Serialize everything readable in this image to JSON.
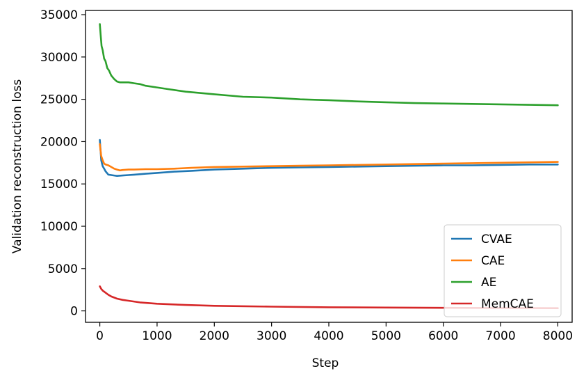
{
  "chart_data": {
    "type": "line",
    "xlabel": "Step",
    "ylabel": "Validation reconstruction loss",
    "xlim": [
      -250,
      8250
    ],
    "ylim": [
      -1350,
      35500
    ],
    "xticks": [
      0,
      1000,
      2000,
      3000,
      4000,
      5000,
      6000,
      7000,
      8000
    ],
    "yticks": [
      0,
      5000,
      10000,
      15000,
      20000,
      25000,
      30000,
      35000
    ],
    "grid": false,
    "legend_position": "lower-right",
    "series": [
      {
        "name": "CVAE",
        "color": "#1f77b4",
        "x": [
          0,
          25,
          50,
          75,
          100,
          150,
          200,
          250,
          300,
          400,
          500,
          600,
          800,
          1000,
          1300,
          1600,
          2000,
          2500,
          3000,
          3500,
          4000,
          4500,
          5000,
          5500,
          6000,
          6500,
          7000,
          7500,
          8000
        ],
        "y": [
          20200,
          17800,
          17100,
          16800,
          16500,
          16100,
          16050,
          16000,
          15950,
          16000,
          16050,
          16100,
          16200,
          16300,
          16450,
          16550,
          16700,
          16800,
          16900,
          16950,
          17000,
          17050,
          17100,
          17150,
          17200,
          17200,
          17250,
          17300,
          17300
        ]
      },
      {
        "name": "CAE",
        "color": "#ff7f0e",
        "x": [
          0,
          25,
          50,
          75,
          100,
          150,
          200,
          250,
          300,
          350,
          400,
          500,
          600,
          800,
          1000,
          1300,
          1600,
          2000,
          2500,
          3000,
          3500,
          4000,
          4500,
          5000,
          5500,
          6000,
          6500,
          7000,
          7500,
          8000
        ],
        "y": [
          19700,
          18300,
          17800,
          17400,
          17300,
          17200,
          17000,
          16800,
          16700,
          16600,
          16650,
          16700,
          16700,
          16750,
          16750,
          16800,
          16900,
          17000,
          17050,
          17100,
          17150,
          17200,
          17250,
          17300,
          17350,
          17400,
          17450,
          17500,
          17550,
          17600
        ]
      },
      {
        "name": "AE",
        "color": "#2ca02c",
        "x": [
          0,
          15,
          30,
          50,
          75,
          100,
          130,
          160,
          200,
          250,
          300,
          350,
          400,
          500,
          600,
          700,
          800,
          1000,
          1200,
          1500,
          2000,
          2500,
          3000,
          3500,
          4000,
          4500,
          5000,
          5500,
          6000,
          6500,
          7000,
          7500,
          8000
        ],
        "y": [
          33900,
          32600,
          31300,
          30800,
          29800,
          29500,
          28700,
          28400,
          27800,
          27400,
          27100,
          27000,
          27000,
          27000,
          26900,
          26800,
          26600,
          26400,
          26200,
          25900,
          25600,
          25300,
          25200,
          25000,
          24900,
          24750,
          24650,
          24550,
          24500,
          24450,
          24400,
          24350,
          24300
        ]
      },
      {
        "name": "MemCAE",
        "color": "#d62728",
        "x": [
          0,
          25,
          50,
          100,
          150,
          200,
          300,
          400,
          500,
          700,
          1000,
          1500,
          2000,
          3000,
          4000,
          5000,
          6000,
          7000,
          8000
        ],
        "y": [
          2900,
          2600,
          2400,
          2150,
          1900,
          1700,
          1450,
          1300,
          1200,
          1000,
          850,
          700,
          600,
          500,
          430,
          390,
          360,
          340,
          320
        ]
      }
    ]
  }
}
